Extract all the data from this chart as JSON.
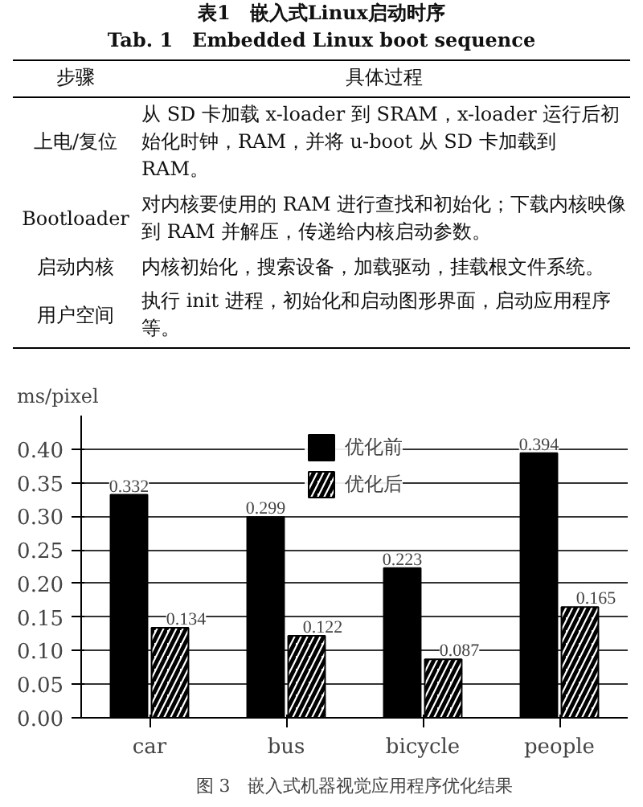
{
  "chart_data": [
    {
      "type": "other",
      "title": "表1　嵌入式Linux启动时序",
      "subtitle": "Tab. 1　Embedded Linux boot sequence",
      "annotations": [
        "步骤",
        "具体过程",
        "上电/复位",
        "从 SD 卡加载 x-loader 到 SRAM，x-loader 运行后初始化时钟，RAM，并将 u-boot 从 SD 卡加载到 RAM。",
        "Bootloader",
        "对内核要使用的 RAM 进行查找和初始化；下载内核映像到 RAM 并解压，传递给内核启动参数。",
        "启动内核",
        "内核初始化，搜索设备，加载驱动，挂载根文件系统。",
        "用户空间",
        "执行 init 进程，初始化和启动图形界面，启动应用程序等。"
      ]
    },
    {
      "type": "bar",
      "title": "图 3　嵌入式机器视觉应用程序优化结果",
      "ylabel": "ms/pixel",
      "categories": [
        "car",
        "bus",
        "bicycle",
        "people"
      ],
      "series": [
        {
          "name": "优化前",
          "color": "#000000",
          "values": [
            0.332,
            0.299,
            0.223,
            0.394
          ]
        },
        {
          "name": "优化后",
          "color": "#ffffff",
          "values": [
            0.134,
            0.122,
            0.087,
            0.165
          ]
        }
      ],
      "ylim": [
        0,
        0.45
      ],
      "yticks": [
        {
          "value": 0,
          "label": "0.00"
        },
        {
          "value": 0.05,
          "label": "0.05"
        },
        {
          "value": 0.1,
          "label": "0.10"
        },
        {
          "value": 0.15,
          "label": "0.15"
        },
        {
          "value": 0.2,
          "label": "0.20"
        },
        {
          "value": 0.25,
          "label": "0.25"
        },
        {
          "value": 0.3,
          "label": "0.30"
        },
        {
          "value": 0.35,
          "label": "0.35"
        },
        {
          "value": 0.4,
          "label": "0.40"
        }
      ],
      "grid": "y",
      "legend": "top",
      "data_labels": true
    }
  ]
}
